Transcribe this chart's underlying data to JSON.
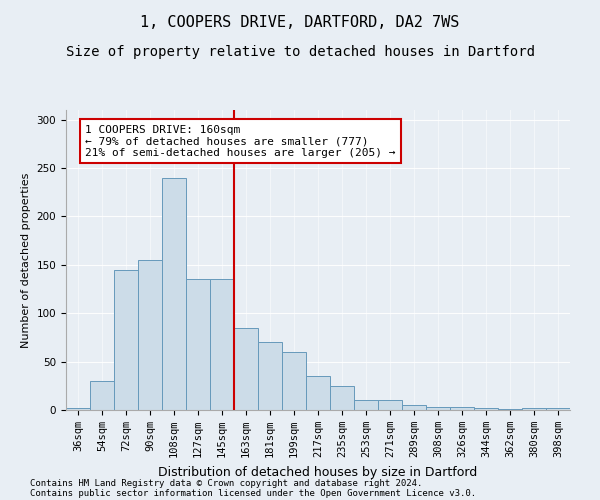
{
  "title1": "1, COOPERS DRIVE, DARTFORD, DA2 7WS",
  "title2": "Size of property relative to detached houses in Dartford",
  "xlabel": "Distribution of detached houses by size in Dartford",
  "ylabel": "Number of detached properties",
  "categories": [
    "36sqm",
    "54sqm",
    "72sqm",
    "90sqm",
    "108sqm",
    "127sqm",
    "145sqm",
    "163sqm",
    "181sqm",
    "199sqm",
    "217sqm",
    "235sqm",
    "253sqm",
    "271sqm",
    "289sqm",
    "308sqm",
    "326sqm",
    "344sqm",
    "362sqm",
    "380sqm",
    "398sqm"
  ],
  "values": [
    2,
    30,
    145,
    155,
    240,
    135,
    135,
    85,
    70,
    60,
    35,
    25,
    10,
    10,
    5,
    3,
    3,
    2,
    1,
    2,
    2
  ],
  "bar_color": "#ccdce8",
  "bar_edge_color": "#6699bb",
  "redline_index": 7,
  "annotation_text": "1 COOPERS DRIVE: 160sqm\n← 79% of detached houses are smaller (777)\n21% of semi-detached houses are larger (205) →",
  "annotation_box_color": "#ffffff",
  "annotation_box_edge": "#cc0000",
  "redline_color": "#cc0000",
  "footnote1": "Contains HM Land Registry data © Crown copyright and database right 2024.",
  "footnote2": "Contains public sector information licensed under the Open Government Licence v3.0.",
  "ylim": [
    0,
    310
  ],
  "yticks": [
    0,
    50,
    100,
    150,
    200,
    250,
    300
  ],
  "background_color": "#e8eef4",
  "title1_fontsize": 11,
  "title2_fontsize": 10,
  "xlabel_fontsize": 9,
  "ylabel_fontsize": 8,
  "tick_fontsize": 7.5,
  "footnote_fontsize": 6.5,
  "annot_fontsize": 8
}
